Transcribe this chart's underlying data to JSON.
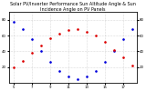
{
  "title": "Solar PV/Inverter Performance Sun Altitude Angle & Sun Incidence Angle on PV Panels",
  "blue_x": [
    5,
    6,
    7,
    8,
    9,
    10,
    11,
    12,
    13,
    14,
    15,
    16,
    17,
    18
  ],
  "blue_y": [
    78,
    68,
    55,
    40,
    27,
    15,
    8,
    5,
    8,
    15,
    27,
    40,
    55,
    68
  ],
  "red_x": [
    5,
    6,
    7,
    8,
    9,
    10,
    11,
    12,
    13,
    14,
    15,
    16,
    17,
    18
  ],
  "red_y": [
    20,
    28,
    38,
    48,
    57,
    63,
    67,
    68,
    65,
    60,
    52,
    42,
    32,
    22
  ],
  "blue_color": "#0000dd",
  "red_color": "#dd0000",
  "bg_color": "#ffffff",
  "grid_color": "#888888",
  "title_fontsize": 3.5,
  "tick_fontsize": 2.8,
  "right_yticks": [
    80,
    60,
    40,
    20
  ],
  "right_yticklabels": [
    "80",
    "60",
    "40",
    "20"
  ],
  "xlim": [
    4.5,
    18.5
  ],
  "ylim": [
    0,
    90
  ],
  "xticks": [
    5,
    7,
    9,
    11,
    13,
    15,
    17
  ],
  "xticklabels": [
    "5",
    "7",
    "9",
    "11",
    "13",
    "15",
    "17"
  ],
  "yticks_left": [
    20,
    40,
    60,
    80
  ],
  "yticks_right": [
    20,
    40,
    60,
    80
  ]
}
